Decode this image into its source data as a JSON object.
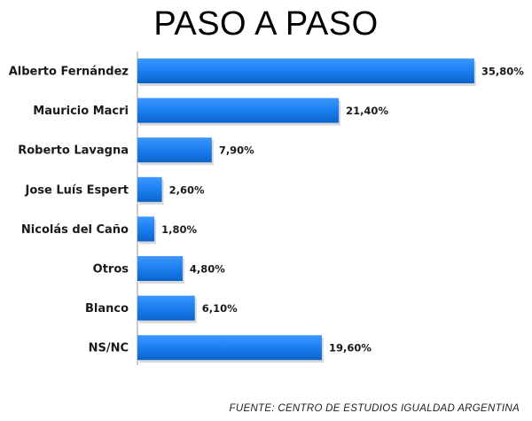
{
  "chart_data": {
    "type": "bar",
    "orientation": "horizontal",
    "title": "PASO A PASO",
    "categories": [
      "Alberto Fernández",
      "Mauricio Macri",
      "Roberto Lavagna",
      "Jose Luís Espert",
      "Nicolás del Caño",
      "Otros",
      "Blanco",
      "NS/NC"
    ],
    "values": [
      35.8,
      21.4,
      7.9,
      2.6,
      1.8,
      4.8,
      6.1,
      19.6
    ],
    "value_labels": [
      "35,80%",
      "21,40%",
      "7,90%",
      "2,60%",
      "1,80%",
      "4,80%",
      "6,10%",
      "19,60%"
    ],
    "xlim": [
      0,
      36
    ],
    "bar_color": "#1a7ff0",
    "grid": false,
    "source": "FUENTE: CENTRO DE ESTUDIOS IGUALDAD ARGENTINA"
  }
}
